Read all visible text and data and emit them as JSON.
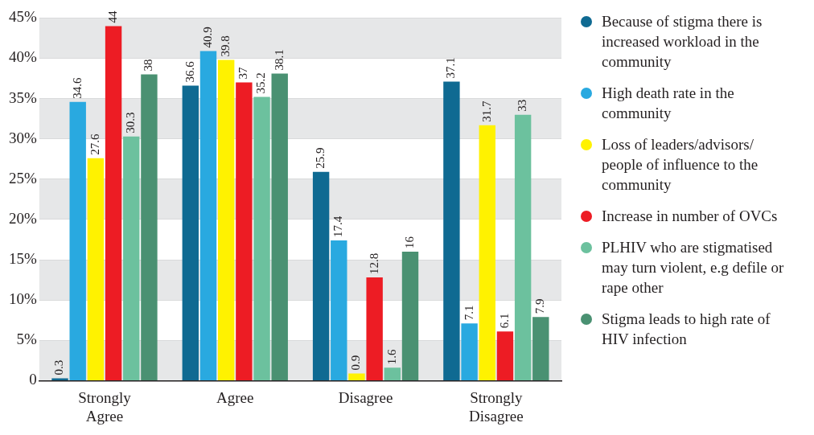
{
  "chart_data": {
    "type": "bar",
    "categories": [
      "Strongly Agree",
      "Agree",
      "Disagree",
      "Strongly Disagree"
    ],
    "series": [
      {
        "name": "Because of stigma there is increased workload in the community",
        "color": "#0f6a92",
        "values": [
          0.3,
          36.6,
          25.9,
          37.1
        ]
      },
      {
        "name": "High death rate in the community",
        "color": "#29a9e0",
        "values": [
          34.6,
          40.9,
          17.4,
          7.1
        ]
      },
      {
        "name": "Loss of leaders/advisors/ people of influence to the community",
        "color": "#fff200",
        "values": [
          27.6,
          39.8,
          0.9,
          31.7
        ]
      },
      {
        "name": "Increase in number of OVCs",
        "color": "#ed1c24",
        "values": [
          44,
          37,
          12.8,
          6.1
        ]
      },
      {
        "name": "PLHIV who are stigmatised may turn violent, e.g defile or rape other",
        "color": "#6cc19e",
        "values": [
          30.3,
          35.2,
          1.6,
          33
        ]
      },
      {
        "name": "Stigma leads to high rate of HIV infection",
        "color": "#4a9172",
        "values": [
          38,
          38.1,
          16,
          7.9
        ]
      }
    ],
    "ylim": [
      0,
      45
    ],
    "yticks": [
      0,
      {
        "value": 5,
        "label": "5%"
      },
      {
        "value": 10,
        "label": "10%"
      },
      {
        "value": 15,
        "label": "15%"
      },
      {
        "value": 20,
        "label": "20%"
      },
      {
        "value": 25,
        "label": "25%"
      },
      {
        "value": 30,
        "label": "30%"
      },
      {
        "value": 35,
        "label": "35%"
      },
      {
        "value": 40,
        "label": "40%"
      },
      {
        "value": 45,
        "label": "45%"
      }
    ],
    "grid": "y",
    "legend": "right",
    "data_labels": true
  }
}
